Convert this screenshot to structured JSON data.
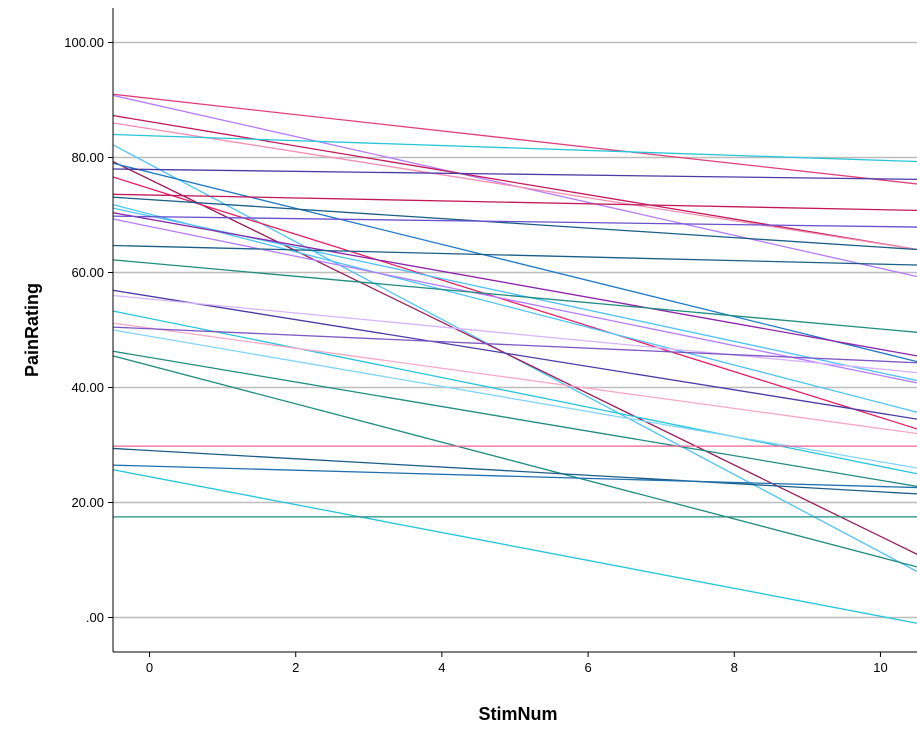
{
  "chart_data": {
    "type": "line",
    "title": "",
    "xlabel": "StimNum",
    "ylabel": "PainRating",
    "xlim": [
      -0.5,
      10.5
    ],
    "ylim": [
      -6,
      106
    ],
    "x_ticks": [
      0,
      2,
      4,
      6,
      8,
      10
    ],
    "x_tick_labels": [
      "0",
      "2",
      "4",
      "6",
      "8",
      "10"
    ],
    "y_ticks": [
      0,
      20,
      40,
      60,
      80,
      100
    ],
    "y_tick_labels": [
      ".00",
      "20.00",
      "40.00",
      "60.00",
      "80.00",
      "100.00"
    ],
    "grid": "horizontal",
    "legend": "none",
    "series": [
      {
        "color": "#e0407a",
        "x": [
          -0.5,
          10.5
        ],
        "y": [
          91.0,
          75.4
        ]
      },
      {
        "color": "#b57bff",
        "x": [
          -0.5,
          10.5
        ],
        "y": [
          90.8,
          59.3
        ]
      },
      {
        "color": "#c2185b",
        "x": [
          -0.5,
          10.5
        ],
        "y": [
          87.3,
          64.0
        ]
      },
      {
        "color": "#f48fb1",
        "x": [
          -0.5,
          10.5
        ],
        "y": [
          86.0,
          64.0
        ]
      },
      {
        "color": "#26c6da",
        "x": [
          -0.5,
          10.5
        ],
        "y": [
          84.0,
          79.3
        ]
      },
      {
        "color": "#4fc3f7",
        "x": [
          -0.5,
          10.5
        ],
        "y": [
          82.2,
          8.0
        ]
      },
      {
        "color": "#9c1c5a",
        "x": [
          -0.5,
          10.5
        ],
        "y": [
          79.3,
          11.0
        ]
      },
      {
        "color": "#1e78c8",
        "x": [
          -0.5,
          10.5
        ],
        "y": [
          79.0,
          44.5
        ]
      },
      {
        "color": "#4b3aa6",
        "x": [
          -0.5,
          10.5
        ],
        "y": [
          78.0,
          76.2
        ]
      },
      {
        "color": "#e91e63",
        "x": [
          -0.5,
          10.5
        ],
        "y": [
          76.6,
          32.8
        ]
      },
      {
        "color": "#c2185b",
        "x": [
          -0.5,
          10.5
        ],
        "y": [
          73.6,
          70.8
        ]
      },
      {
        "color": "#1a5e86",
        "x": [
          -0.5,
          10.5
        ],
        "y": [
          73.1,
          64.0
        ]
      },
      {
        "color": "#4fc3f7",
        "x": [
          -0.5,
          10.5
        ],
        "y": [
          71.8,
          35.7
        ]
      },
      {
        "color": "#4fc3f7",
        "x": [
          -0.5,
          10.5
        ],
        "y": [
          71.2,
          41.2
        ]
      },
      {
        "color": "#8e24aa",
        "x": [
          -0.5,
          10.5
        ],
        "y": [
          70.4,
          45.5
        ]
      },
      {
        "color": "#6a4fcf",
        "x": [
          -0.5,
          10.5
        ],
        "y": [
          69.8,
          67.9
        ]
      },
      {
        "color": "#b57bff",
        "x": [
          -0.5,
          10.5
        ],
        "y": [
          69.3,
          40.8
        ]
      },
      {
        "color": "#1a5e86",
        "x": [
          -0.5,
          10.5
        ],
        "y": [
          64.7,
          61.3
        ]
      },
      {
        "color": "#1e8c80",
        "x": [
          -0.5,
          10.5
        ],
        "y": [
          62.2,
          49.6
        ]
      },
      {
        "color": "#4b3aa6",
        "x": [
          -0.5,
          10.5
        ],
        "y": [
          56.9,
          34.5
        ]
      },
      {
        "color": "#d9b3ff",
        "x": [
          -0.5,
          10.5
        ],
        "y": [
          56.0,
          42.6
        ]
      },
      {
        "color": "#26c6da",
        "x": [
          -0.5,
          10.5
        ],
        "y": [
          53.3,
          25.0
        ]
      },
      {
        "color": "#f8a7c8",
        "x": [
          -0.5,
          10.5
        ],
        "y": [
          51.2,
          32.0
        ]
      },
      {
        "color": "#7e57c2",
        "x": [
          -0.5,
          10.5
        ],
        "y": [
          50.5,
          44.3
        ]
      },
      {
        "color": "#81d4fa",
        "x": [
          -0.5,
          10.5
        ],
        "y": [
          50.0,
          26.0
        ]
      },
      {
        "color": "#1e8c80",
        "x": [
          -0.5,
          10.5
        ],
        "y": [
          46.3,
          22.8
        ]
      },
      {
        "color": "#1e8c80",
        "x": [
          -0.5,
          10.5
        ],
        "y": [
          45.5,
          8.8
        ]
      },
      {
        "color": "#f06292",
        "x": [
          -0.5,
          10.5
        ],
        "y": [
          29.8,
          29.8
        ]
      },
      {
        "color": "#1a5e86",
        "x": [
          -0.5,
          10.5
        ],
        "y": [
          29.4,
          21.5
        ]
      },
      {
        "color": "#1e6fb0",
        "x": [
          -0.5,
          10.5
        ],
        "y": [
          26.5,
          22.6
        ]
      },
      {
        "color": "#26c6da",
        "x": [
          -0.5,
          10.5
        ],
        "y": [
          25.7,
          -1.0
        ]
      },
      {
        "color": "#1e8c80",
        "x": [
          -0.5,
          10.5
        ],
        "y": [
          17.5,
          17.5
        ]
      }
    ]
  }
}
